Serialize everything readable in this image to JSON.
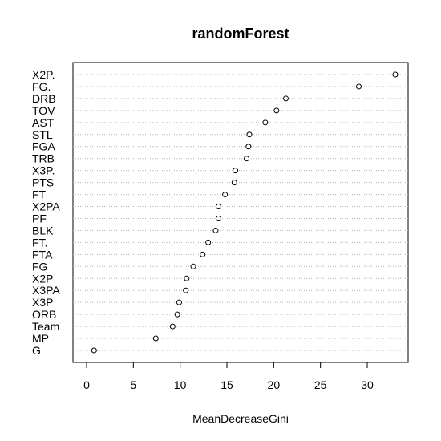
{
  "chart_data": {
    "type": "scatter",
    "subtype": "dotchart",
    "title": "randomForest",
    "xlabel": "MeanDecreaseGini",
    "ylabel": "",
    "xlim": [
      -0.5,
      34
    ],
    "xticks": [
      0,
      5,
      10,
      15,
      20,
      25,
      30
    ],
    "grid": "dotted horizontal lines per variable",
    "point_style": "open circle",
    "variables": [
      "X2P.",
      "FG.",
      "DRB",
      "TOV",
      "AST",
      "STL",
      "FGA",
      "TRB",
      "X3P.",
      "PTS",
      "FT",
      "X2PA",
      "PF",
      "BLK",
      "FT.",
      "FTA",
      "FG",
      "X2P",
      "X3PA",
      "X3P",
      "ORB",
      "Team",
      "MP",
      "G"
    ],
    "values": [
      33.0,
      29.1,
      21.3,
      20.3,
      19.1,
      17.4,
      17.3,
      17.1,
      15.9,
      15.8,
      14.8,
      14.1,
      14.1,
      13.8,
      13.0,
      12.4,
      11.4,
      10.7,
      10.6,
      9.9,
      9.7,
      9.2,
      7.4,
      0.8
    ]
  }
}
